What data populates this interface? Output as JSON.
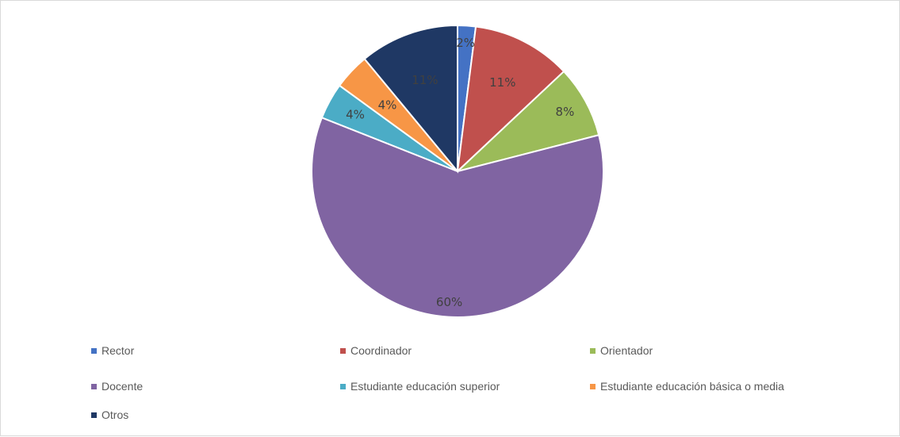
{
  "chart_data": {
    "type": "pie",
    "title": "",
    "start_angle_deg": 0,
    "direction": "clockwise",
    "slices": [
      {
        "name": "Rector",
        "value": 2,
        "label": "2%",
        "color": "#4472C4"
      },
      {
        "name": "Coordinador",
        "value": 11,
        "label": "11%",
        "color": "#C0504D"
      },
      {
        "name": "Orientador",
        "value": 8,
        "label": "8%",
        "color": "#9BBB59"
      },
      {
        "name": "Docente",
        "value": 60,
        "label": "60%",
        "color": "#8064A2"
      },
      {
        "name": "Estudiante educación superior",
        "value": 4,
        "label": "4%",
        "color": "#4BACC6"
      },
      {
        "name": "Estudiante educación básica o media",
        "value": 4,
        "label": "4%",
        "color": "#F79646"
      },
      {
        "name": "Otros",
        "value": 11,
        "label": "11%",
        "color": "#1F3864"
      }
    ],
    "legend_position": "bottom"
  }
}
